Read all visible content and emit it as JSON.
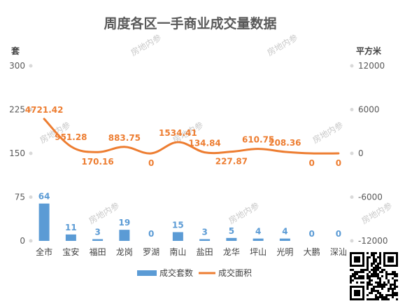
{
  "chart_data": {
    "type": "bar",
    "title": "周度各区一手商业成交量数据",
    "left_unit": "套",
    "right_unit": "平方米",
    "categories": [
      "全市",
      "宝安",
      "福田",
      "龙岗",
      "罗湖",
      "南山",
      "盐田",
      "龙华",
      "坪山",
      "光明",
      "大鹏",
      "深汕"
    ],
    "left_axis": {
      "min": 0,
      "max": 300,
      "ticks": [
        "0",
        "75",
        "150",
        "225",
        "300"
      ]
    },
    "right_axis": {
      "min": -12000,
      "max": 12000,
      "ticks": [
        "-12000",
        "-6000",
        "0",
        "6000",
        "12000"
      ]
    },
    "series": [
      {
        "name": "成交套数",
        "type": "bar",
        "axis": "left",
        "color": "#5b9bd5",
        "values": [
          64,
          11,
          3,
          19,
          0,
          15,
          3,
          5,
          4,
          4,
          0,
          0
        ],
        "labels": [
          "64",
          "11",
          "3",
          "19",
          "0",
          "15",
          "3",
          "5",
          "4",
          "4",
          "0",
          "0"
        ]
      },
      {
        "name": "成交面积",
        "type": "line",
        "axis": "right",
        "color": "#ed7d31",
        "values": [
          4721.42,
          951.28,
          170.16,
          883.75,
          0,
          1534.41,
          134.84,
          227.87,
          610.75,
          208.36,
          0,
          0
        ],
        "labels": [
          "4721.42",
          "951.28",
          "170.16",
          "883.75",
          "0",
          "1534.41",
          "134.84",
          "227.87",
          "610.75",
          "208.36",
          "0",
          "0"
        ]
      }
    ],
    "grid": false,
    "legend": "bottom"
  },
  "watermark": "房地内参"
}
